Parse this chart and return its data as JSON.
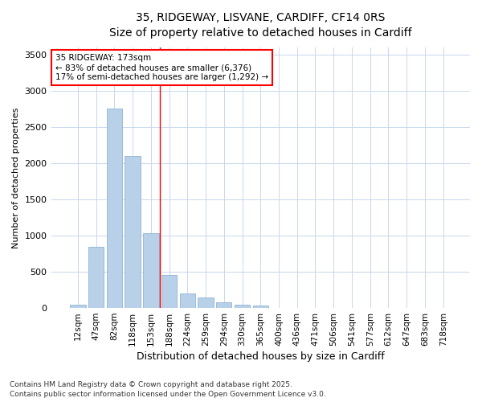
{
  "title_line1": "35, RIDGEWAY, LISVANE, CARDIFF, CF14 0RS",
  "title_line2": "Size of property relative to detached houses in Cardiff",
  "xlabel": "Distribution of detached houses by size in Cardiff",
  "ylabel": "Number of detached properties",
  "categories": [
    "12sqm",
    "47sqm",
    "82sqm",
    "118sqm",
    "153sqm",
    "188sqm",
    "224sqm",
    "259sqm",
    "294sqm",
    "330sqm",
    "365sqm",
    "400sqm",
    "436sqm",
    "471sqm",
    "506sqm",
    "541sqm",
    "577sqm",
    "612sqm",
    "647sqm",
    "683sqm",
    "718sqm"
  ],
  "values": [
    50,
    850,
    2760,
    2100,
    1030,
    460,
    200,
    145,
    80,
    50,
    30,
    0,
    0,
    0,
    0,
    0,
    0,
    0,
    0,
    0,
    0
  ],
  "bar_color": "#b8d0e8",
  "bar_edge_color": "#90b4d4",
  "vline_x": 4.5,
  "vline_color": "red",
  "annotation_title": "35 RIDGEWAY: 173sqm",
  "annotation_line2": "← 83% of detached houses are smaller (6,376)",
  "annotation_line3": "17% of semi-detached houses are larger (1,292) →",
  "annotation_box_color": "#ffffff",
  "annotation_box_edge": "red",
  "ylim": [
    0,
    3600
  ],
  "yticks": [
    0,
    500,
    1000,
    1500,
    2000,
    2500,
    3000,
    3500
  ],
  "footer_line1": "Contains HM Land Registry data © Crown copyright and database right 2025.",
  "footer_line2": "Contains public sector information licensed under the Open Government Licence v3.0.",
  "bg_color": "#ffffff",
  "plot_bg_color": "#ffffff",
  "grid_color": "#c8d8ec"
}
